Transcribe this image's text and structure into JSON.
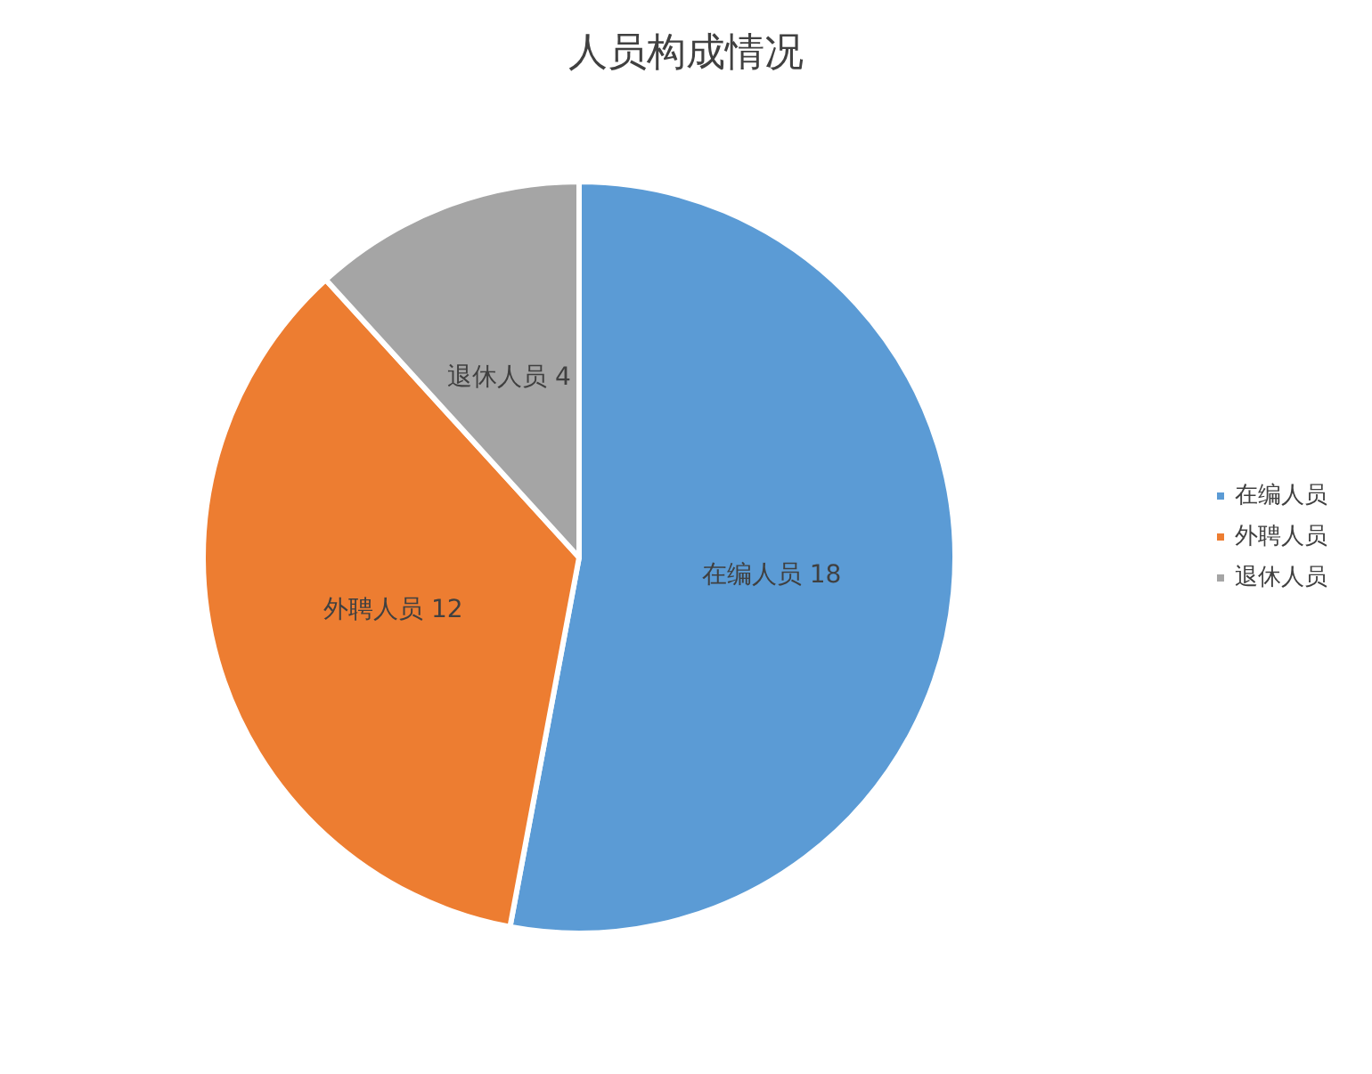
{
  "chart_data": {
    "type": "pie",
    "title": "人员构成情况",
    "categories": [
      "在编人员",
      "外聘人员",
      "退休人员"
    ],
    "values": [
      18,
      12,
      4
    ],
    "colors": [
      "#5b9bd5",
      "#ed7d31",
      "#a5a5a5"
    ],
    "data_labels": true,
    "legend": "right"
  }
}
